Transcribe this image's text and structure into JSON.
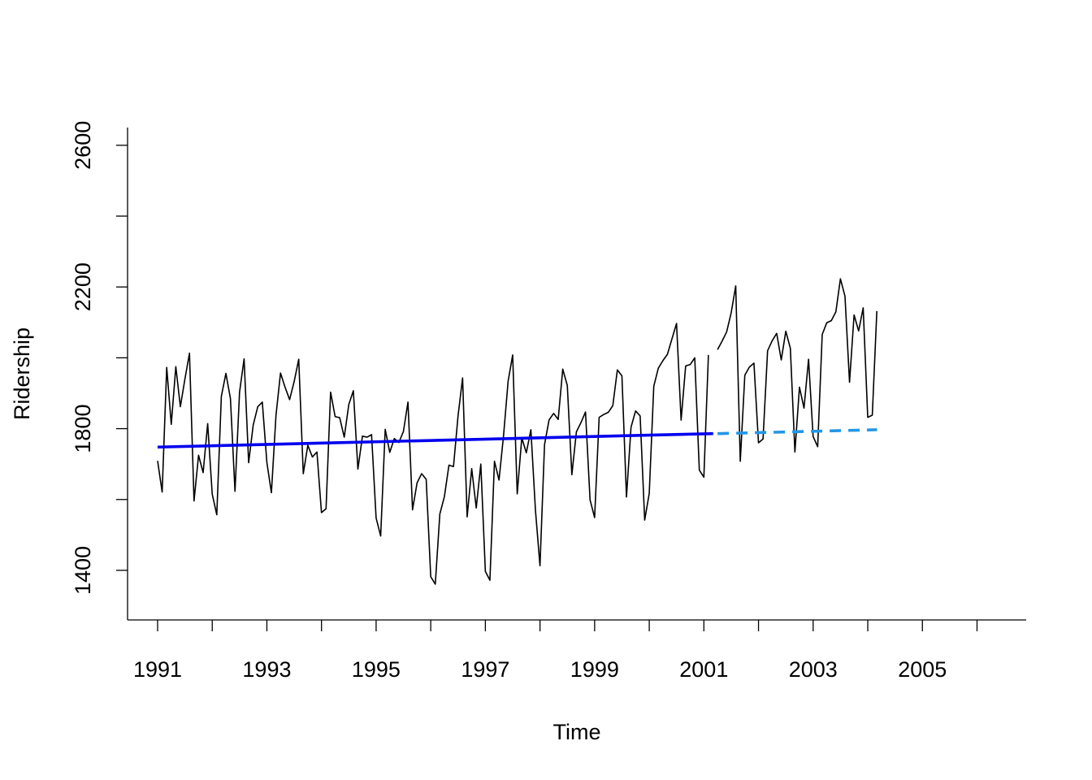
{
  "chart_data": {
    "type": "line",
    "title": "",
    "xlabel": "Time",
    "ylabel": "Ridership",
    "xlim": [
      1990.45,
      2006.9
    ],
    "ylim": [
      1260,
      2650
    ],
    "x_ticks": [
      1991,
      1992,
      1993,
      1994,
      1995,
      1996,
      1997,
      1998,
      1999,
      2000,
      2001,
      2002,
      2003,
      2004,
      2005,
      2006
    ],
    "x_tick_labels": [
      "1991",
      "1993",
      "1995",
      "1997",
      "1999",
      "2001",
      "2003",
      "2005"
    ],
    "x_tick_label_values": [
      1991,
      1993,
      1995,
      1997,
      1999,
      2001,
      2003,
      2005
    ],
    "y_ticks": [
      1400,
      1600,
      1800,
      2000,
      2200,
      2400,
      2600
    ],
    "y_tick_labels": [
      "1400",
      "1800",
      "2200",
      "2600"
    ],
    "y_tick_label_values": [
      1400,
      1800,
      2200,
      2600
    ],
    "grid": false,
    "legend": "none",
    "series": [
      {
        "style": "solid-thin",
        "color": "#000000",
        "x_start": 1991.0,
        "x_step": 0.08333,
        "values": [
          1709,
          1621,
          1973,
          1812,
          1975,
          1862,
          1940,
          2013,
          1596,
          1725,
          1676,
          1814,
          1615,
          1557,
          1891,
          1956,
          1885,
          1623,
          1903,
          1997,
          1704,
          1810,
          1862,
          1875,
          1705,
          1619,
          1837,
          1957,
          1917,
          1882,
          1933,
          1996,
          1673,
          1753,
          1720,
          1734,
          1563,
          1574,
          1903,
          1834,
          1831,
          1776,
          1868,
          1907,
          1686,
          1779,
          1776,
          1783,
          1548,
          1497,
          1798,
          1733,
          1772,
          1761,
          1792,
          1875,
          1571,
          1647,
          1673,
          1657,
          1382,
          1361,
          1559,
          1608,
          1697,
          1693,
          1836,
          1943,
          1551,
          1687,
          1576,
          1700,
          1397,
          1372,
          1708,
          1655,
          1781,
          1934,
          2008,
          1616,
          1774,
          1732,
          1797,
          1570,
          1413,
          1755,
          1825,
          1843,
          1826,
          1968,
          1922,
          1670,
          1791,
          1817,
          1847,
          1599,
          1549,
          1832,
          1840,
          1846,
          1865,
          1966,
          1949,
          1607,
          1804,
          1850,
          1836,
          1542,
          1617,
          1920,
          1971,
          1992,
          2010,
          2054,
          2097,
          1824,
          1977,
          1981,
          2000,
          1683,
          1663,
          2008,
          null,
          2023,
          2047,
          2073,
          2127,
          2203,
          1708,
          1951,
          1974,
          1985,
          1760,
          1771,
          2020,
          2048,
          2069,
          1994,
          2075,
          2027,
          1734,
          1917,
          1858,
          1996,
          1778,
          1749,
          2066,
          2099,
          2105,
          2130,
          2223,
          2174,
          1931,
          2121,
          2076,
          2141,
          1832,
          1838,
          2132
        ]
      },
      {
        "style": "solid-thick",
        "color": "#0000ee",
        "x": [
          1991.0,
          2001.17
        ],
        "values": [
          1748,
          1786
        ]
      },
      {
        "style": "dashed-thick",
        "color": "#2297e6",
        "x": [
          2001.25,
          2004.17
        ],
        "values": [
          1786,
          1797
        ]
      }
    ]
  }
}
